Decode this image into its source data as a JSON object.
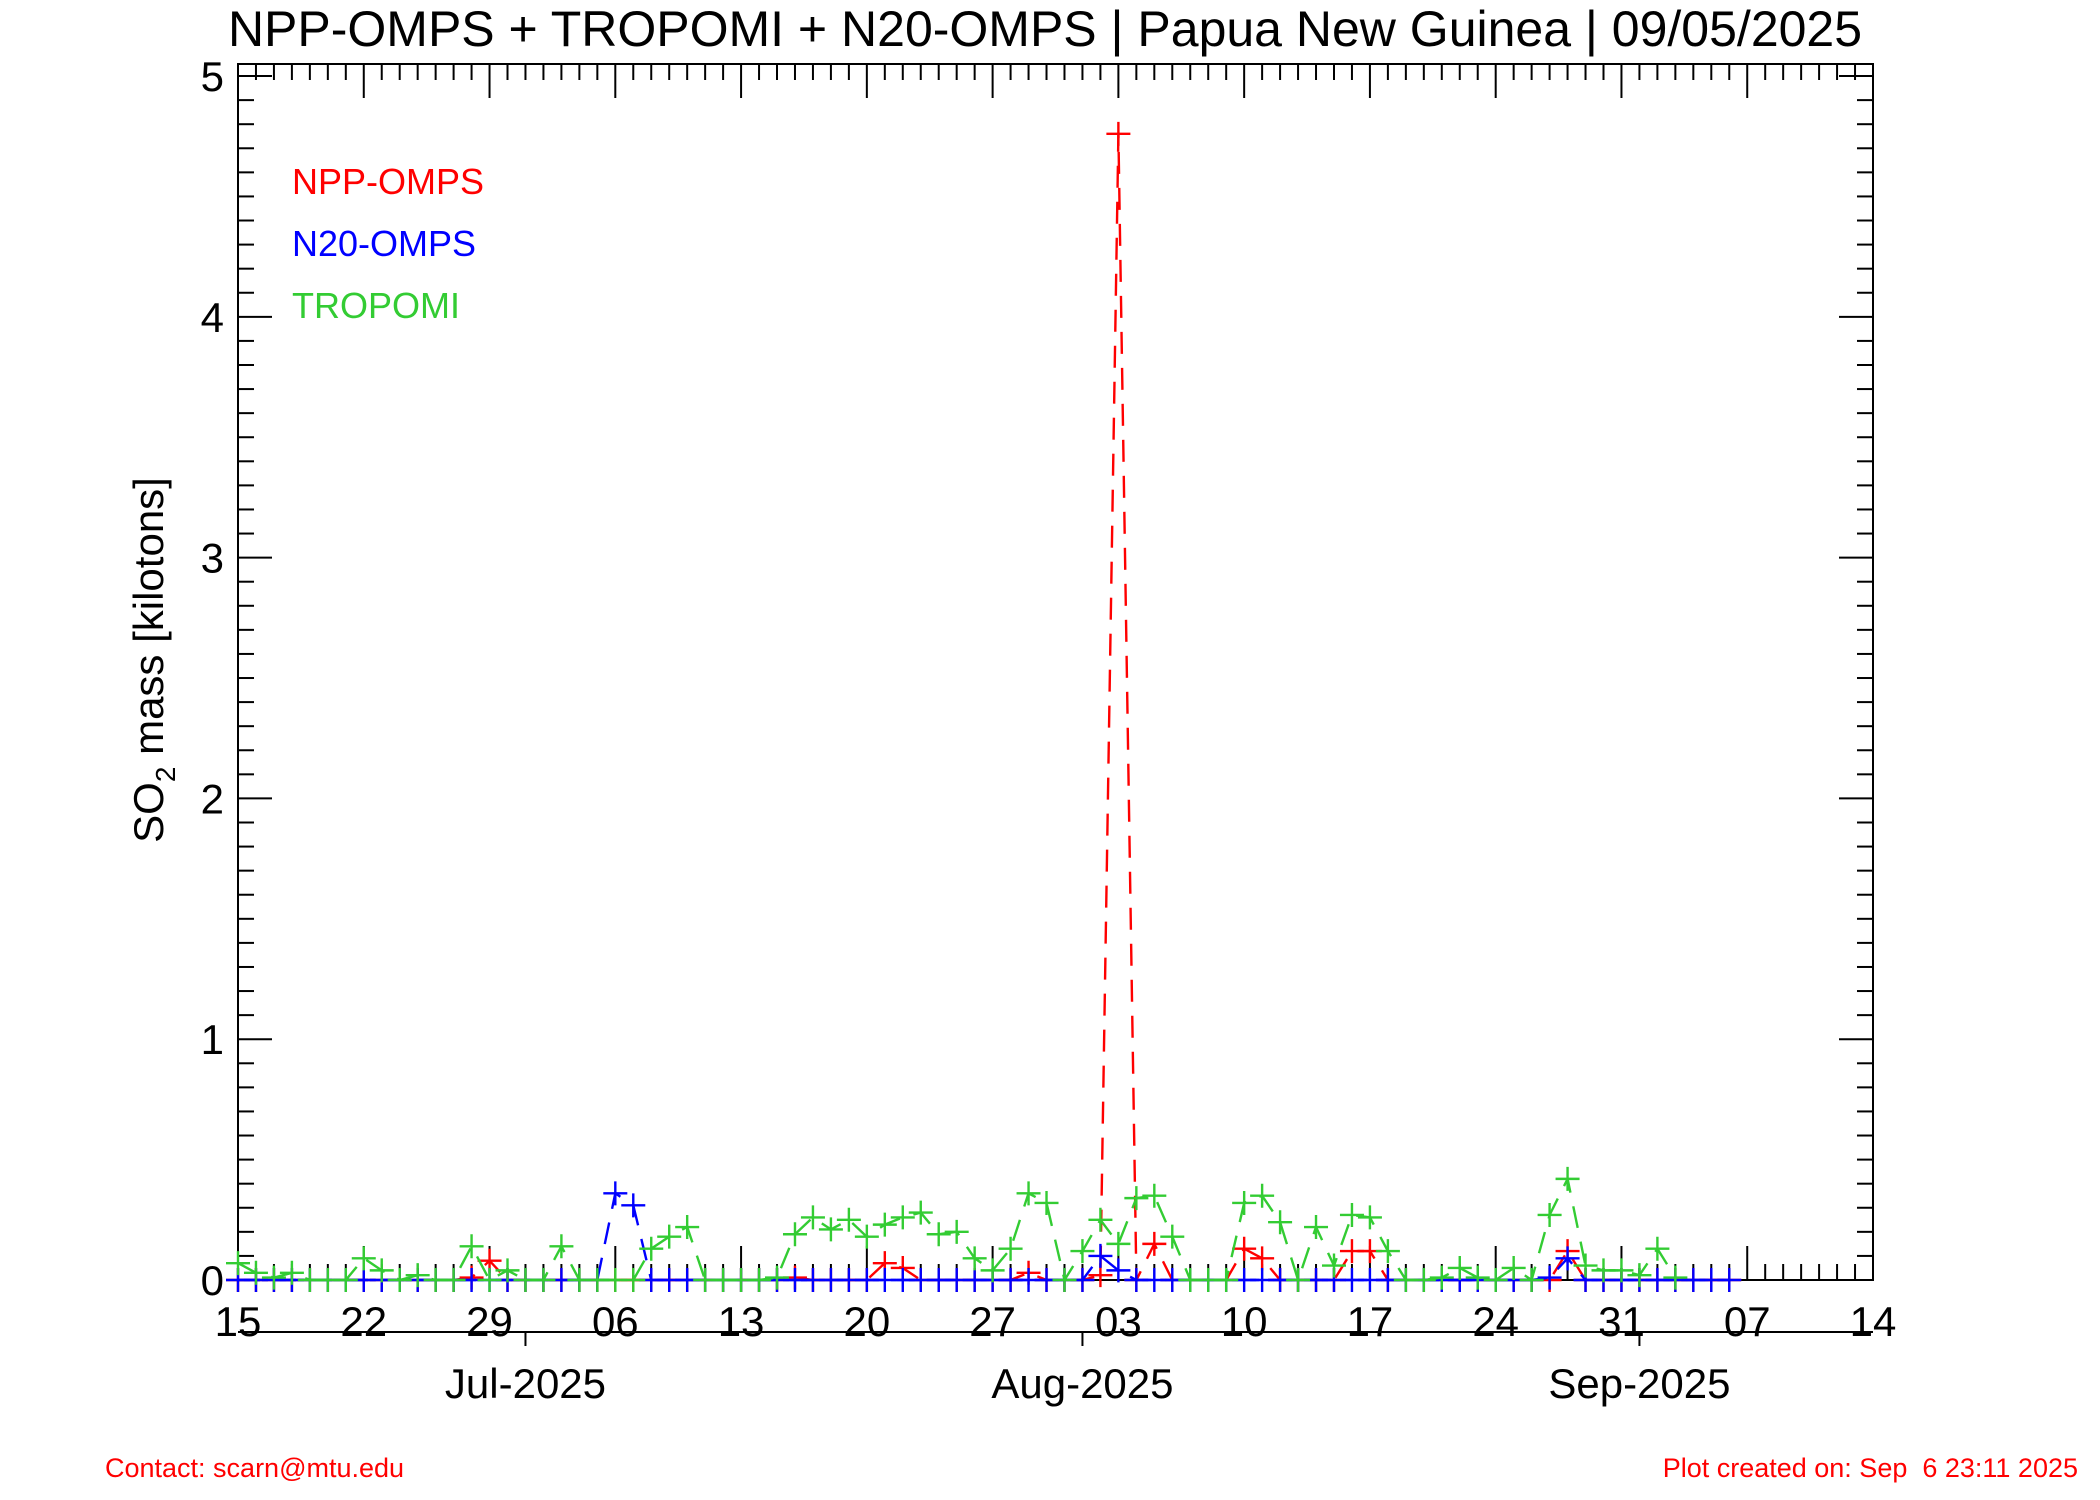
{
  "chart_data": {
    "type": "line",
    "title": "NPP-OMPS + TROPOMI + N20-OMPS | Papua New Guinea | 09/05/2025",
    "ylabel": {
      "prefix": "SO",
      "subscript": "2",
      "suffix": " mass [kilotons]"
    },
    "xlabel": "",
    "x_axis": {
      "start_date": "2025-06-15",
      "end_date": "2025-09-14",
      "day_ticks": [
        {
          "date": "2025-06-15",
          "label": "15"
        },
        {
          "date": "2025-06-22",
          "label": "22"
        },
        {
          "date": "2025-06-29",
          "label": "29"
        },
        {
          "date": "2025-07-06",
          "label": "06"
        },
        {
          "date": "2025-07-13",
          "label": "13"
        },
        {
          "date": "2025-07-20",
          "label": "20"
        },
        {
          "date": "2025-07-27",
          "label": "27"
        },
        {
          "date": "2025-08-03",
          "label": "03"
        },
        {
          "date": "2025-08-10",
          "label": "10"
        },
        {
          "date": "2025-08-17",
          "label": "17"
        },
        {
          "date": "2025-08-24",
          "label": "24"
        },
        {
          "date": "2025-08-31",
          "label": "31"
        },
        {
          "date": "2025-09-07",
          "label": "07"
        },
        {
          "date": "2025-09-14",
          "label": "14"
        }
      ],
      "month_ticks": [
        {
          "date": "2025-07-01",
          "label": "Jul-2025"
        },
        {
          "date": "2025-08-01",
          "label": "Aug-2025"
        },
        {
          "date": "2025-09-01",
          "label": "Sep-2025"
        }
      ]
    },
    "y_axis": {
      "ylim": [
        0,
        5.05
      ],
      "major_ticks": [
        0,
        1,
        2,
        3,
        4,
        5
      ],
      "minor_step": 0.1
    },
    "grid": false,
    "legend_position": "top-left",
    "series": [
      {
        "name": "NPP-OMPS",
        "color": "#ff0000",
        "points": [
          [
            "2025-06-15",
            0
          ],
          [
            "2025-06-16",
            0
          ],
          [
            "2025-06-17",
            0
          ],
          [
            "2025-06-18",
            0
          ],
          [
            "2025-06-19",
            0
          ],
          [
            "2025-06-20",
            0
          ],
          [
            "2025-06-21",
            0
          ],
          [
            "2025-06-22",
            0
          ],
          [
            "2025-06-23",
            0
          ],
          [
            "2025-06-24",
            0
          ],
          [
            "2025-06-25",
            0
          ],
          [
            "2025-06-26",
            0
          ],
          [
            "2025-06-27",
            0
          ],
          [
            "2025-06-28",
            0.01
          ],
          [
            "2025-06-29",
            0.08
          ],
          [
            "2025-06-30",
            0
          ],
          [
            "2025-07-01",
            0
          ],
          [
            "2025-07-02",
            0
          ],
          [
            "2025-07-03",
            0
          ],
          [
            "2025-07-04",
            0
          ],
          [
            "2025-07-05",
            0
          ],
          [
            "2025-07-06",
            0
          ],
          [
            "2025-07-07",
            0
          ],
          [
            "2025-07-08",
            0
          ],
          [
            "2025-07-09",
            0
          ],
          [
            "2025-07-10",
            0
          ],
          [
            "2025-07-11",
            0
          ],
          [
            "2025-07-12",
            0
          ],
          [
            "2025-07-13",
            0
          ],
          [
            "2025-07-14",
            0
          ],
          [
            "2025-07-15",
            0
          ],
          [
            "2025-07-16",
            0.01
          ],
          [
            "2025-07-17",
            0
          ],
          [
            "2025-07-18",
            0
          ],
          [
            "2025-07-19",
            0
          ],
          [
            "2025-07-20",
            0
          ],
          [
            "2025-07-21",
            0.07
          ],
          [
            "2025-07-22",
            0.05
          ],
          [
            "2025-07-23",
            0
          ],
          [
            "2025-07-24",
            0
          ],
          [
            "2025-07-25",
            0
          ],
          [
            "2025-07-26",
            0
          ],
          [
            "2025-07-27",
            0
          ],
          [
            "2025-07-28",
            0
          ],
          [
            "2025-07-29",
            0.03
          ],
          [
            "2025-07-30",
            0
          ],
          [
            "2025-07-31",
            0
          ],
          [
            "2025-08-01",
            0
          ],
          [
            "2025-08-02",
            0.02
          ],
          [
            "2025-08-03",
            4.76
          ],
          [
            "2025-08-04",
            0
          ],
          [
            "2025-08-05",
            0.15
          ],
          [
            "2025-08-06",
            0
          ],
          [
            "2025-08-07",
            0
          ],
          [
            "2025-08-08",
            0
          ],
          [
            "2025-08-09",
            0
          ],
          [
            "2025-08-10",
            0.13
          ],
          [
            "2025-08-11",
            0.09
          ],
          [
            "2025-08-12",
            0
          ],
          [
            "2025-08-13",
            0
          ],
          [
            "2025-08-14",
            0
          ],
          [
            "2025-08-15",
            0
          ],
          [
            "2025-08-16",
            0.12
          ],
          [
            "2025-08-17",
            0.12
          ],
          [
            "2025-08-18",
            0
          ],
          [
            "2025-08-19",
            0
          ],
          [
            "2025-08-20",
            0
          ],
          [
            "2025-08-21",
            0
          ],
          [
            "2025-08-22",
            0
          ],
          [
            "2025-08-23",
            0
          ],
          [
            "2025-08-24",
            0
          ],
          [
            "2025-08-25",
            0
          ],
          [
            "2025-08-26",
            0
          ],
          [
            "2025-08-27",
            0
          ],
          [
            "2025-08-28",
            0.12
          ],
          [
            "2025-08-29",
            0
          ],
          [
            "2025-08-30",
            0
          ],
          [
            "2025-08-31",
            0
          ],
          [
            "2025-09-01",
            0
          ],
          [
            "2025-09-02",
            0
          ],
          [
            "2025-09-03",
            0
          ],
          [
            "2025-09-04",
            0
          ],
          [
            "2025-09-05",
            0
          ],
          [
            "2025-09-06",
            0
          ]
        ]
      },
      {
        "name": "N20-OMPS",
        "color": "#0000ff",
        "points": [
          [
            "2025-06-15",
            0
          ],
          [
            "2025-06-16",
            0
          ],
          [
            "2025-06-17",
            0
          ],
          [
            "2025-06-18",
            0
          ],
          [
            "2025-06-19",
            0
          ],
          [
            "2025-06-20",
            0
          ],
          [
            "2025-06-21",
            0
          ],
          [
            "2025-06-22",
            0
          ],
          [
            "2025-06-23",
            0
          ],
          [
            "2025-06-24",
            0
          ],
          [
            "2025-06-25",
            0
          ],
          [
            "2025-06-26",
            0
          ],
          [
            "2025-06-27",
            0
          ],
          [
            "2025-06-28",
            0
          ],
          [
            "2025-06-29",
            0
          ],
          [
            "2025-06-30",
            0
          ],
          [
            "2025-07-01",
            0
          ],
          [
            "2025-07-02",
            0
          ],
          [
            "2025-07-03",
            0
          ],
          [
            "2025-07-04",
            0
          ],
          [
            "2025-07-05",
            0
          ],
          [
            "2025-07-06",
            0.36
          ],
          [
            "2025-07-07",
            0.31
          ],
          [
            "2025-07-08",
            0
          ],
          [
            "2025-07-09",
            0
          ],
          [
            "2025-07-10",
            0
          ],
          [
            "2025-07-11",
            0
          ],
          [
            "2025-07-12",
            0
          ],
          [
            "2025-07-13",
            0
          ],
          [
            "2025-07-14",
            0
          ],
          [
            "2025-07-15",
            0
          ],
          [
            "2025-07-16",
            0
          ],
          [
            "2025-07-17",
            0
          ],
          [
            "2025-07-18",
            0
          ],
          [
            "2025-07-19",
            0
          ],
          [
            "2025-07-20",
            0
          ],
          [
            "2025-07-21",
            0
          ],
          [
            "2025-07-22",
            0
          ],
          [
            "2025-07-23",
            0
          ],
          [
            "2025-07-24",
            0
          ],
          [
            "2025-07-25",
            0
          ],
          [
            "2025-07-26",
            0
          ],
          [
            "2025-07-27",
            0
          ],
          [
            "2025-07-28",
            0
          ],
          [
            "2025-07-29",
            0
          ],
          [
            "2025-07-30",
            0
          ],
          [
            "2025-07-31",
            0
          ],
          [
            "2025-08-01",
            0
          ],
          [
            "2025-08-02",
            0.1
          ],
          [
            "2025-08-03",
            0.04
          ],
          [
            "2025-08-04",
            0
          ],
          [
            "2025-08-05",
            0
          ],
          [
            "2025-08-06",
            0
          ],
          [
            "2025-08-07",
            0
          ],
          [
            "2025-08-08",
            0
          ],
          [
            "2025-08-09",
            0
          ],
          [
            "2025-08-10",
            0
          ],
          [
            "2025-08-11",
            0
          ],
          [
            "2025-08-12",
            0
          ],
          [
            "2025-08-13",
            0
          ],
          [
            "2025-08-14",
            0
          ],
          [
            "2025-08-15",
            0
          ],
          [
            "2025-08-16",
            0
          ],
          [
            "2025-08-17",
            0
          ],
          [
            "2025-08-18",
            0
          ],
          [
            "2025-08-19",
            0
          ],
          [
            "2025-08-20",
            0
          ],
          [
            "2025-08-21",
            0
          ],
          [
            "2025-08-22",
            0
          ],
          [
            "2025-08-23",
            0
          ],
          [
            "2025-08-24",
            0
          ],
          [
            "2025-08-25",
            0
          ],
          [
            "2025-08-26",
            0
          ],
          [
            "2025-08-27",
            0.01
          ],
          [
            "2025-08-28",
            0.09
          ],
          [
            "2025-08-29",
            0
          ],
          [
            "2025-08-30",
            0
          ],
          [
            "2025-08-31",
            0
          ],
          [
            "2025-09-01",
            0
          ],
          [
            "2025-09-02",
            0
          ],
          [
            "2025-09-03",
            0
          ],
          [
            "2025-09-04",
            0
          ],
          [
            "2025-09-05",
            0
          ],
          [
            "2025-09-06",
            0
          ]
        ]
      },
      {
        "name": "TROPOMI",
        "color": "#33cc33",
        "points": [
          [
            "2025-06-15",
            0.07
          ],
          [
            "2025-06-16",
            0.03
          ],
          [
            "2025-06-17",
            0.01
          ],
          [
            "2025-06-18",
            0.03
          ],
          [
            "2025-06-19",
            0
          ],
          [
            "2025-06-20",
            0
          ],
          [
            "2025-06-21",
            0
          ],
          [
            "2025-06-22",
            0.09
          ],
          [
            "2025-06-23",
            0.04
          ],
          [
            "2025-06-24",
            0
          ],
          [
            "2025-06-25",
            0.02
          ],
          [
            "2025-06-26",
            0
          ],
          [
            "2025-06-27",
            0
          ],
          [
            "2025-06-28",
            0.14
          ],
          [
            "2025-06-29",
            0
          ],
          [
            "2025-06-30",
            0.04
          ],
          [
            "2025-07-01",
            0
          ],
          [
            "2025-07-02",
            0
          ],
          [
            "2025-07-03",
            0.14
          ],
          [
            "2025-07-04",
            0
          ],
          [
            "2025-07-05",
            0
          ],
          [
            "2025-07-06",
            0
          ],
          [
            "2025-07-07",
            0
          ],
          [
            "2025-07-08",
            0.13
          ],
          [
            "2025-07-09",
            0.18
          ],
          [
            "2025-07-10",
            0.22
          ],
          [
            "2025-07-11",
            0
          ],
          [
            "2025-07-12",
            0
          ],
          [
            "2025-07-13",
            0
          ],
          [
            "2025-07-14",
            0
          ],
          [
            "2025-07-15",
            0.01
          ],
          [
            "2025-07-16",
            0.19
          ],
          [
            "2025-07-17",
            0.26
          ],
          [
            "2025-07-18",
            0.21
          ],
          [
            "2025-07-19",
            0.25
          ],
          [
            "2025-07-20",
            0.18
          ],
          [
            "2025-07-21",
            0.23
          ],
          [
            "2025-07-22",
            0.26
          ],
          [
            "2025-07-23",
            0.28
          ],
          [
            "2025-07-24",
            0.19
          ],
          [
            "2025-07-25",
            0.2
          ],
          [
            "2025-07-26",
            0.09
          ],
          [
            "2025-07-27",
            0.04
          ],
          [
            "2025-07-28",
            0.13
          ],
          [
            "2025-07-29",
            0.36
          ],
          [
            "2025-07-30",
            0.32
          ],
          [
            "2025-07-31",
            0
          ],
          [
            "2025-08-01",
            0.12
          ],
          [
            "2025-08-02",
            0.25
          ],
          [
            "2025-08-03",
            0.15
          ],
          [
            "2025-08-04",
            0.34
          ],
          [
            "2025-08-05",
            0.35
          ],
          [
            "2025-08-06",
            0.18
          ],
          [
            "2025-08-07",
            0
          ],
          [
            "2025-08-08",
            0
          ],
          [
            "2025-08-09",
            0
          ],
          [
            "2025-08-10",
            0.32
          ],
          [
            "2025-08-11",
            0.35
          ],
          [
            "2025-08-12",
            0.24
          ],
          [
            "2025-08-13",
            0
          ],
          [
            "2025-08-14",
            0.22
          ],
          [
            "2025-08-15",
            0.06
          ],
          [
            "2025-08-16",
            0.27
          ],
          [
            "2025-08-17",
            0.26
          ],
          [
            "2025-08-18",
            0.12
          ],
          [
            "2025-08-19",
            0
          ],
          [
            "2025-08-20",
            0
          ],
          [
            "2025-08-21",
            0.01
          ],
          [
            "2025-08-22",
            0.05
          ],
          [
            "2025-08-23",
            0.01
          ],
          [
            "2025-08-24",
            0
          ],
          [
            "2025-08-25",
            0.05
          ],
          [
            "2025-08-26",
            0
          ],
          [
            "2025-08-27",
            0.27
          ],
          [
            "2025-08-28",
            0.42
          ],
          [
            "2025-08-29",
            0.06
          ],
          [
            "2025-08-30",
            0.04
          ],
          [
            "2025-08-31",
            0.04
          ],
          [
            "2025-09-01",
            0.02
          ],
          [
            "2025-09-02",
            0.13
          ],
          [
            "2025-09-03",
            0.01
          ]
        ]
      }
    ]
  },
  "footer": {
    "contact": "Contact: scarn@mtu.edu",
    "created": "Plot created on: Sep  6 23:11 2025"
  },
  "colors": {
    "axis": "#000000",
    "footer_text": "#ff0000",
    "background": "#ffffff"
  }
}
